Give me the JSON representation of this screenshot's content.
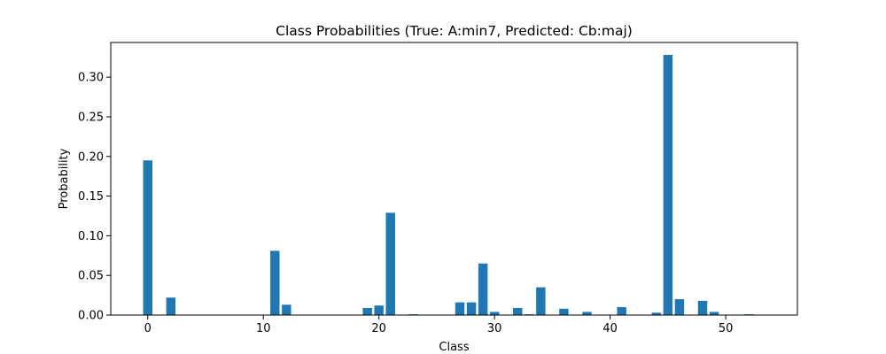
{
  "chart_data": {
    "type": "bar",
    "title": "Class Probabilities (True: A:min7, Predicted: Cb:maj)",
    "xlabel": "Class",
    "ylabel": "Probability",
    "xlim": [
      -3.2,
      56.2
    ],
    "ylim": [
      0,
      0.3437
    ],
    "xticks": [
      0,
      10,
      20,
      30,
      40,
      50
    ],
    "yticks": [
      0.0,
      0.05,
      0.1,
      0.15,
      0.2,
      0.25,
      0.3
    ],
    "ytick_labels": [
      "0.00",
      "0.05",
      "0.10",
      "0.15",
      "0.20",
      "0.25",
      "0.30"
    ],
    "bar_color": "#1f77b4",
    "grid": false,
    "x": [
      0,
      2,
      11,
      12,
      19,
      20,
      21,
      23,
      27,
      28,
      29,
      30,
      32,
      33,
      34,
      36,
      38,
      41,
      44,
      45,
      46,
      48,
      49,
      52
    ],
    "values": [
      0.195,
      0.022,
      0.081,
      0.013,
      0.009,
      0.012,
      0.129,
      0.001,
      0.016,
      0.016,
      0.065,
      0.004,
      0.009,
      0.001,
      0.035,
      0.008,
      0.004,
      0.01,
      0.003,
      0.328,
      0.02,
      0.018,
      0.004,
      0.001
    ]
  }
}
